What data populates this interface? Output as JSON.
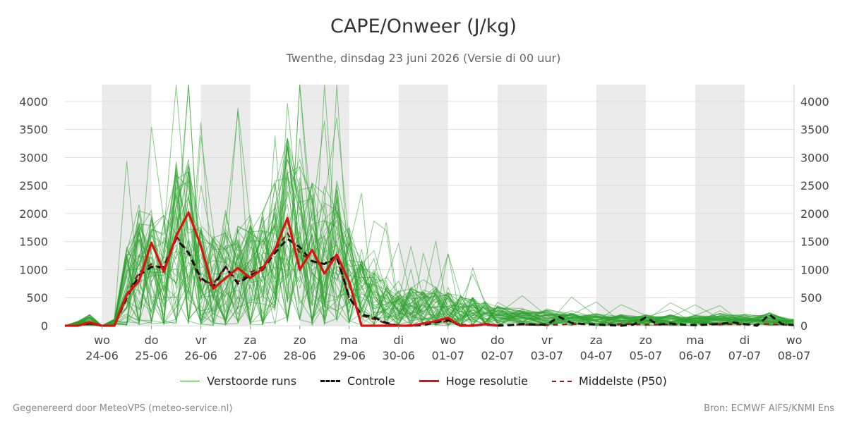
{
  "header": {
    "title": "CAPE/Onweer (J/kg)",
    "subtitle": "Twenthe, dinsdag 23 juni 2026 (Versie di 00 uur)"
  },
  "legend": {
    "items": [
      {
        "label": "Verstoorde runs",
        "color": "#2ca02c",
        "style": "thin"
      },
      {
        "label": "Controle",
        "color": "#111111",
        "style": "dashed-bold"
      },
      {
        "label": "Hoge resolutie",
        "color": "#dd1111",
        "style": "solid-bold"
      },
      {
        "label": "Middelste (P50)",
        "color": "#8b1a1a",
        "style": "dashed"
      }
    ]
  },
  "footer": {
    "left": "Gegenereerd door MeteoVPS (meteo-service.nl)",
    "right": "Bron: ECMWF AIFS/KNMI Ens"
  },
  "chart_data": {
    "type": "line",
    "title": "CAPE/Onweer (J/kg)",
    "ylim": [
      0,
      4300
    ],
    "yticks": [
      0,
      500,
      1000,
      1500,
      2000,
      2500,
      3000,
      3500,
      4000
    ],
    "xlim": [
      -0.75,
      14
    ],
    "x_unit": "days from 24-06 00:00",
    "xtick_days": [
      "wo",
      "do",
      "vr",
      "za",
      "zo",
      "ma",
      "di",
      "wo",
      "do",
      "vr",
      "za",
      "zo",
      "ma",
      "di",
      "wo"
    ],
    "xtick_dates": [
      "24-06",
      "25-06",
      "26-06",
      "27-06",
      "28-06",
      "29-06",
      "30-06",
      "01-07",
      "02-07",
      "03-07",
      "04-07",
      "05-07",
      "06-07",
      "07-07",
      "08-07"
    ],
    "weekend_bands": [
      [
        0,
        1
      ],
      [
        2,
        3
      ],
      [
        4,
        5
      ],
      [
        6,
        7
      ],
      [
        8,
        9
      ],
      [
        10,
        11
      ],
      [
        12,
        13
      ]
    ],
    "grid": true,
    "colors": {
      "ensemble": "#2ca02c",
      "controle": "#111111",
      "hoge_resolutie": "#dd1111",
      "p50": "#8b1a1a",
      "band": "#ebebeb",
      "grid": "#dddddd"
    },
    "series": [
      {
        "name": "Hoge resolutie",
        "x": [
          -0.75,
          -0.5,
          -0.25,
          0,
          0.25,
          0.5,
          0.75,
          1,
          1.25,
          1.5,
          1.75,
          2,
          2.25,
          2.5,
          2.75,
          3,
          3.25,
          3.5,
          3.75,
          4,
          4.25,
          4.5,
          4.75,
          5,
          5.25,
          5.5,
          5.75,
          6,
          6.25,
          6.5,
          6.75,
          7,
          7.25,
          7.5,
          7.75,
          8
        ],
        "values": [
          0,
          0,
          60,
          0,
          0,
          550,
          800,
          1480,
          960,
          1600,
          2020,
          1420,
          660,
          850,
          1030,
          850,
          1020,
          1360,
          1920,
          1000,
          1350,
          930,
          1270,
          780,
          0,
          0,
          0,
          0,
          0,
          40,
          80,
          140,
          0,
          0,
          30,
          0
        ]
      },
      {
        "name": "Controle",
        "x": [
          -0.75,
          -0.5,
          -0.25,
          0,
          0.25,
          0.5,
          0.75,
          1,
          1.25,
          1.5,
          1.75,
          2,
          2.25,
          2.5,
          2.75,
          3,
          3.25,
          3.5,
          3.75,
          4,
          4.25,
          4.5,
          4.75,
          5,
          5.25,
          5.5,
          5.75,
          6,
          6.25,
          6.5,
          6.75,
          7,
          7.25,
          7.5,
          7.75,
          8,
          8.25,
          8.5,
          8.75,
          9,
          9.25,
          9.5,
          9.75,
          10,
          10.25,
          10.5,
          10.75,
          11,
          11.25,
          11.5,
          11.75,
          12,
          12.25,
          12.5,
          12.75,
          13,
          13.25,
          13.5,
          13.75,
          14
        ],
        "values": [
          0,
          0,
          40,
          0,
          0,
          500,
          900,
          1050,
          1050,
          1550,
          1300,
          850,
          700,
          1050,
          750,
          900,
          1000,
          1300,
          1550,
          1400,
          1150,
          1100,
          1250,
          500,
          200,
          150,
          50,
          0,
          0,
          10,
          60,
          100,
          0,
          0,
          20,
          0,
          10,
          30,
          20,
          20,
          160,
          50,
          30,
          20,
          10,
          0,
          20,
          150,
          20,
          40,
          20,
          10,
          20,
          30,
          60,
          30,
          0,
          200,
          30,
          10
        ]
      },
      {
        "name": "Middelste (P50)",
        "x": [
          -0.75,
          -0.5,
          -0.25,
          0,
          0.25,
          0.5,
          0.75,
          1,
          1.25,
          1.5,
          1.75,
          2,
          2.25,
          2.5,
          2.75,
          3,
          3.25,
          3.5,
          3.75,
          4,
          4.25,
          4.5,
          4.75,
          5,
          5.25,
          5.5,
          5.75,
          6,
          6.25,
          6.5,
          6.75,
          7,
          7.25,
          7.5,
          7.75,
          8,
          8.5,
          9,
          9.5,
          10,
          10.5,
          11,
          11.5,
          12,
          12.5,
          13,
          13.5,
          14
        ],
        "values": [
          0,
          0,
          40,
          0,
          0,
          550,
          950,
          1100,
          1000,
          1600,
          1300,
          800,
          750,
          1050,
          780,
          950,
          1050,
          1350,
          1650,
          1300,
          1150,
          1100,
          1200,
          500,
          180,
          120,
          40,
          0,
          10,
          30,
          60,
          80,
          20,
          10,
          20,
          10,
          20,
          10,
          30,
          20,
          30,
          20,
          20,
          20,
          30,
          20,
          30,
          10
        ]
      },
      {
        "name": "Verstoorde runs",
        "ensemble_members": 50,
        "envelope_max": 4300,
        "peak_days": [
          "26-06",
          "28-06",
          "29-06",
          "30-06"
        ]
      }
    ]
  }
}
